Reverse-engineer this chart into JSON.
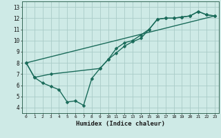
{
  "title": "",
  "xlabel": "Humidex (Indice chaleur)",
  "background_color": "#ceeae6",
  "grid_color": "#aaccc8",
  "line_color": "#1a6b5a",
  "xlim": [
    -0.5,
    23.5
  ],
  "ylim": [
    3.5,
    13.5
  ],
  "xticks": [
    0,
    1,
    2,
    3,
    4,
    5,
    6,
    7,
    8,
    9,
    10,
    11,
    12,
    13,
    14,
    15,
    16,
    17,
    18,
    19,
    20,
    21,
    22,
    23
  ],
  "yticks": [
    4,
    5,
    6,
    7,
    8,
    9,
    10,
    11,
    12,
    13
  ],
  "series1_x": [
    0,
    1,
    2,
    3,
    4,
    5,
    6,
    7,
    8,
    9,
    10,
    11,
    12,
    13,
    14,
    15,
    16,
    17,
    18,
    19,
    20,
    21,
    22,
    23
  ],
  "series1_y": [
    8.0,
    6.7,
    6.2,
    5.9,
    5.6,
    4.5,
    4.6,
    4.2,
    6.6,
    7.5,
    8.3,
    9.3,
    9.8,
    10.0,
    10.5,
    11.0,
    11.9,
    12.0,
    12.0,
    12.1,
    12.2,
    12.6,
    12.3,
    12.2
  ],
  "series2_x": [
    0,
    1,
    3,
    9,
    10,
    11,
    12,
    13,
    14,
    15,
    16,
    17,
    18,
    19,
    20,
    21,
    22,
    23
  ],
  "series2_y": [
    8.0,
    6.7,
    7.0,
    7.5,
    8.3,
    8.9,
    9.5,
    9.9,
    10.2,
    11.0,
    11.9,
    12.0,
    12.0,
    12.1,
    12.2,
    12.6,
    12.3,
    12.2
  ],
  "series3_x": [
    0,
    23
  ],
  "series3_y": [
    8.0,
    12.2
  ],
  "marker_size": 2.5,
  "line_width": 1.0
}
